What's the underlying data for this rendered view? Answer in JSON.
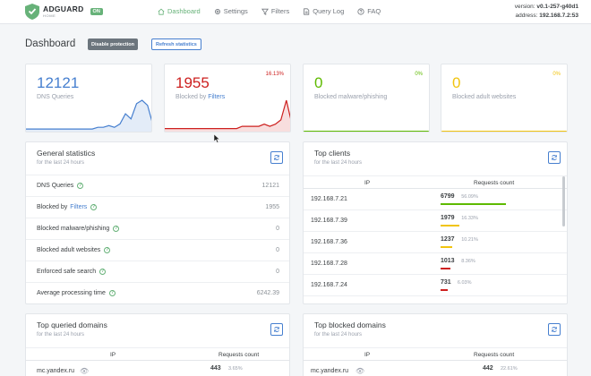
{
  "header": {
    "brand": "ADGUARD",
    "brand_sub": "HOME",
    "status_badge": "ON",
    "nav": [
      {
        "label": "Dashboard",
        "icon": "home-icon"
      },
      {
        "label": "Settings",
        "icon": "gear-icon"
      },
      {
        "label": "Filters",
        "icon": "filter-icon"
      },
      {
        "label": "Query Log",
        "icon": "document-icon"
      },
      {
        "label": "FAQ",
        "icon": "help-icon"
      }
    ],
    "version_label": "version:",
    "version": "v0.1-257-g40d1",
    "address_label": "address:",
    "address": "192.168.7.2:53"
  },
  "dashboard": {
    "title": "Dashboard",
    "disable_button": "Disable protection",
    "refresh_button": "Refresh statistics"
  },
  "stats": [
    {
      "value": "12121",
      "label": "DNS Queries",
      "label_link": "",
      "percent": "",
      "color": "#467fcf",
      "spark": [
        1,
        1,
        1,
        1,
        1,
        1,
        1,
        1,
        1,
        1,
        1,
        1,
        1,
        2,
        2,
        3,
        2,
        4,
        10,
        7,
        16,
        18,
        15,
        3
      ]
    },
    {
      "value": "1955",
      "label": "Blocked by",
      "label_link": "Filters",
      "percent": "16.13%",
      "color": "#cd201f",
      "spark": [
        1,
        1,
        1,
        1,
        1,
        1,
        1,
        1,
        1,
        1,
        1,
        1,
        1,
        1,
        2,
        2,
        2,
        2,
        3,
        2,
        3,
        5,
        14,
        3
      ]
    },
    {
      "value": "0",
      "label": "Blocked malware/phishing",
      "label_link": "",
      "percent": "0%",
      "color": "#5eba00",
      "spark": []
    },
    {
      "value": "0",
      "label": "Blocked adult websites",
      "label_link": "",
      "percent": "0%",
      "color": "#f1c40f",
      "spark": []
    }
  ],
  "general": {
    "title": "General statistics",
    "subtitle": "for the last 24 hours",
    "rows": [
      {
        "label": "DNS Queries",
        "link": "",
        "value": "12121"
      },
      {
        "label": "Blocked by",
        "link": "Filters",
        "value": "1955"
      },
      {
        "label": "Blocked malware/phishing",
        "link": "",
        "value": "0"
      },
      {
        "label": "Blocked adult websites",
        "link": "",
        "value": "0"
      },
      {
        "label": "Enforced safe search",
        "link": "",
        "value": "0"
      },
      {
        "label": "Average processing time",
        "link": "",
        "value": "6242.39"
      }
    ]
  },
  "clients": {
    "title": "Top clients",
    "subtitle": "for the last 24 hours",
    "col_ip": "IP",
    "col_count": "Requests count",
    "rows": [
      {
        "ip": "192.168.7.21",
        "count": "6799",
        "percent": "56.09%",
        "fraction": 0.5609,
        "color": "#5eba00"
      },
      {
        "ip": "192.168.7.39",
        "count": "1979",
        "percent": "16.33%",
        "fraction": 0.1633,
        "color": "#f1c40f"
      },
      {
        "ip": "192.168.7.36",
        "count": "1237",
        "percent": "10.21%",
        "fraction": 0.1021,
        "color": "#f1c40f"
      },
      {
        "ip": "192.168.7.28",
        "count": "1013",
        "percent": "8.36%",
        "fraction": 0.0836,
        "color": "#cd201f"
      },
      {
        "ip": "192.168.7.24",
        "count": "731",
        "percent": "6.03%",
        "fraction": 0.0603,
        "color": "#cd201f"
      }
    ]
  },
  "queried": {
    "title": "Top queried domains",
    "subtitle": "for the last 24 hours",
    "col_ip": "IP",
    "col_count": "Requests count",
    "rows": [
      {
        "domain": "mc.yandex.ru",
        "count": "443",
        "percent": "3.65%"
      }
    ]
  },
  "blocked": {
    "title": "Top blocked domains",
    "subtitle": "for the last 24 hours",
    "col_ip": "IP",
    "col_count": "Requests count",
    "rows": [
      {
        "domain": "mc.yandex.ru",
        "count": "442",
        "percent": "22.61%"
      }
    ]
  }
}
